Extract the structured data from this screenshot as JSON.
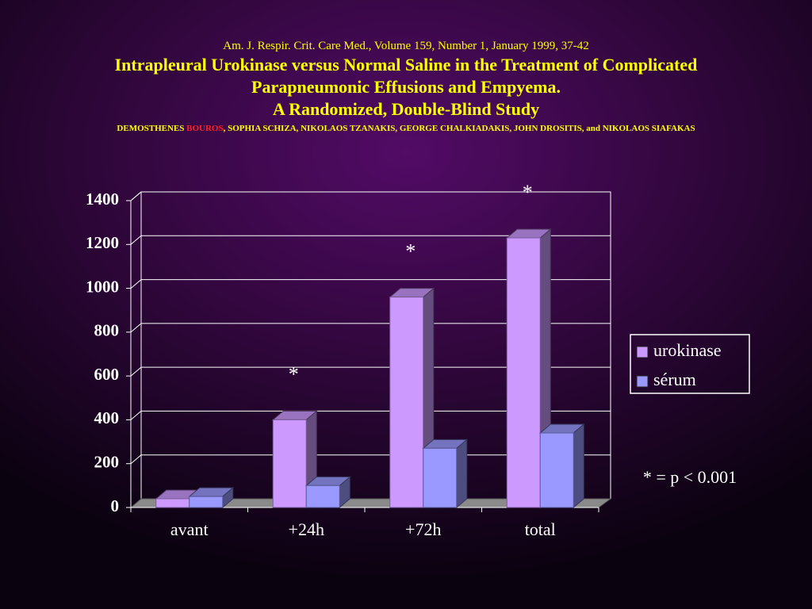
{
  "header": {
    "citation": "Am. J. Respir. Crit. Care Med., Volume 159, Number 1, January 1999, 37-42",
    "title": [
      "Intrapleural Urokinase versus Normal Saline in the Treatment of Complicated",
      "Parapneumonic Effusions and Empyema.",
      "A Randomized, Double-Blind Study"
    ],
    "authors": {
      "first": "DEMOSTHENES",
      "highlight": "BOUROS",
      "rest": ", SOPHIA SCHIZA, NIKOLAOS TZANAKIS, GEORGE CHALKIADAKIS, JOHN DROSITIS, and NIKOLAOS SIAFAKAS"
    }
  },
  "chart_data": {
    "type": "bar3d",
    "categories": [
      "avant",
      "+24h",
      "+72h",
      "total"
    ],
    "series": [
      {
        "name": "urokinase",
        "color": "#cc99ff",
        "values": [
          40,
          400,
          960,
          1230
        ]
      },
      {
        "name": "sérum",
        "color": "#9999ff",
        "values": [
          50,
          100,
          270,
          340
        ]
      }
    ],
    "annotations": [
      null,
      "*",
      "*",
      "*"
    ],
    "note": "* = p < 0.001",
    "ylim": [
      0,
      1400
    ],
    "yticks": [
      0,
      200,
      400,
      600,
      800,
      1000,
      1200,
      1400
    ],
    "grid": true,
    "legend": "right"
  }
}
